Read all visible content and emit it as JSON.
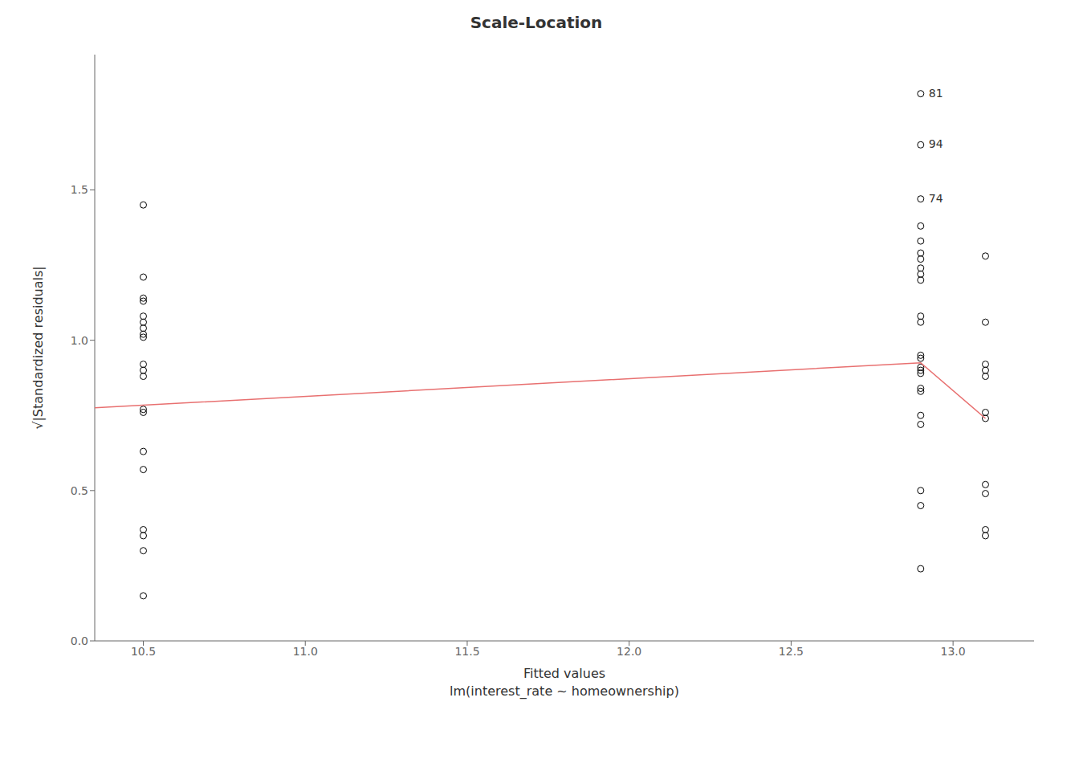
{
  "chart_data": {
    "type": "scatter",
    "title": "Scale-Location",
    "x_label": "Fitted values\nlm(interest_rate ~ homeownership)",
    "y_label": "√|Standardized residuals|",
    "xlim": [
      10.35,
      13.25
    ],
    "ylim": [
      0.0,
      1.95
    ],
    "xticks": [
      10.5,
      {
        "value": 11,
        "label": "11.0"
      },
      11.5,
      {
        "value": 12,
        "label": "12.0"
      },
      12.5,
      {
        "value": 13,
        "label": "13.0"
      }
    ],
    "yticks": [
      {
        "value": 0,
        "label": "0.0"
      },
      0.5,
      {
        "value": 1,
        "label": "1.0"
      },
      1.5
    ],
    "grid": false,
    "series": [
      {
        "type": "scatter",
        "color": "black",
        "marker": "open circle",
        "x": [
          10.5,
          10.5,
          10.5,
          10.5,
          10.5,
          10.5,
          10.5,
          10.5,
          10.5,
          10.5,
          10.5,
          10.5,
          10.5,
          10.5,
          10.5,
          10.5,
          10.5,
          10.5,
          10.5,
          10.5,
          12.9,
          12.9,
          12.9,
          12.9,
          12.9,
          12.9,
          12.9,
          12.9,
          12.9,
          12.9,
          12.9,
          12.9,
          12.9,
          12.9,
          12.9,
          12.9,
          12.9,
          12.9,
          12.9,
          12.9,
          12.9,
          12.9,
          12.9,
          12.9,
          13.1,
          13.1,
          13.1,
          13.1,
          13.1,
          13.1,
          13.1,
          13.1,
          13.1,
          13.1,
          13.1
        ],
        "values": [
          1.45,
          1.21,
          1.14,
          1.13,
          1.08,
          1.06,
          1.04,
          1.02,
          1.01,
          0.92,
          0.9,
          0.88,
          0.77,
          0.76,
          0.63,
          0.57,
          0.37,
          0.35,
          0.3,
          0.15,
          1.82,
          1.65,
          1.47,
          1.38,
          1.33,
          1.29,
          1.27,
          1.24,
          1.22,
          1.2,
          1.08,
          1.06,
          0.95,
          0.94,
          0.91,
          0.9,
          0.89,
          0.84,
          0.83,
          0.75,
          0.72,
          0.5,
          0.45,
          0.24,
          1.28,
          1.06,
          0.92,
          0.9,
          0.88,
          0.76,
          0.74,
          0.52,
          0.49,
          0.37,
          0.35
        ]
      },
      {
        "type": "line",
        "color": "#E87070",
        "x": [
          10.35,
          12.9,
          13.1
        ],
        "values": [
          0.775,
          0.925,
          0.74
        ]
      }
    ],
    "annotations": [
      {
        "x": 12.9,
        "y": 1.82,
        "text": "81"
      },
      {
        "x": 12.9,
        "y": 1.65,
        "text": "94"
      },
      {
        "x": 12.9,
        "y": 1.47,
        "text": "74"
      }
    ]
  }
}
